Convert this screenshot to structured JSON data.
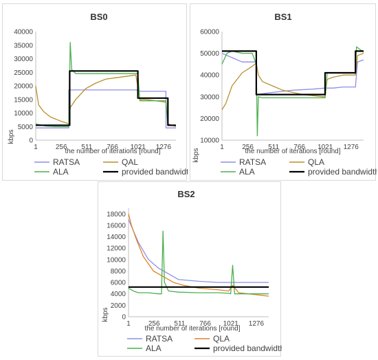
{
  "chart_data": [
    {
      "type": "line",
      "title": "BS0",
      "xlabel": "the number of iterations [round]",
      "ylabel": "kbps",
      "xlim": [
        1,
        1400
      ],
      "ylim": [
        0,
        40000
      ],
      "xticks": [
        "1",
        "256",
        "511",
        "766",
        "1021",
        "1276"
      ],
      "xtick_values": [
        1,
        256,
        511,
        766,
        1021,
        1276
      ],
      "yticks": [
        "0",
        "5000",
        "10000",
        "15000",
        "20000",
        "25000",
        "30000",
        "35000",
        "40000"
      ],
      "ytick_values": [
        0,
        5000,
        10000,
        15000,
        20000,
        25000,
        30000,
        35000,
        40000
      ],
      "legend": [
        "RATSA",
        "QAL",
        "ALA",
        "provided bandwidth"
      ],
      "series": [
        {
          "name": "RATSA",
          "color": "#8e8ee6",
          "x": [
            1,
            50,
            100,
            200,
            330,
            331,
            400,
            600,
            800,
            1000,
            1050,
            1200,
            1300,
            1301,
            1400
          ],
          "y": [
            4500,
            4500,
            4500,
            4500,
            4500,
            18500,
            18500,
            18500,
            18500,
            18500,
            18000,
            18000,
            18000,
            4500,
            4500
          ]
        },
        {
          "name": "QAL",
          "color": "#b8902a",
          "x": [
            1,
            30,
            80,
            150,
            250,
            330,
            345,
            400,
            500,
            600,
            700,
            800,
            900,
            1000,
            1040,
            1100,
            1200,
            1300,
            1320,
            1400
          ],
          "y": [
            20000,
            13000,
            10500,
            8500,
            7000,
            6000,
            12000,
            15000,
            19000,
            21000,
            22500,
            23000,
            23500,
            24000,
            15000,
            15000,
            14500,
            14000,
            6000,
            5000
          ]
        },
        {
          "name": "ALA",
          "color": "#4caf50",
          "x": [
            1,
            100,
            200,
            330,
            345,
            360,
            400,
            500,
            700,
            900,
            1020,
            1040,
            1100,
            1200,
            1300,
            1320,
            1400
          ],
          "y": [
            6000,
            5200,
            5000,
            5000,
            36000,
            26000,
            24500,
            24500,
            24500,
            24500,
            24500,
            14500,
            14500,
            14500,
            14500,
            5500,
            5500
          ]
        },
        {
          "name": "provided bandwidth",
          "color": "#000000",
          "x": [
            1,
            340,
            340,
            1020,
            1020,
            1320,
            1320,
            1400
          ],
          "y": [
            5500,
            5500,
            25500,
            25500,
            15500,
            15500,
            5500,
            5500
          ]
        }
      ]
    },
    {
      "type": "line",
      "title": "BS1",
      "xlabel": "the number of iterations [round]",
      "ylabel": "kbps",
      "xlim": [
        1,
        1400
      ],
      "ylim": [
        10000,
        60000
      ],
      "xticks": [
        "1",
        "256",
        "511",
        "766",
        "1021",
        "1276"
      ],
      "xtick_values": [
        1,
        256,
        511,
        766,
        1021,
        1276
      ],
      "yticks": [
        "10000",
        "20000",
        "30000",
        "40000",
        "50000",
        "60000"
      ],
      "ytick_values": [
        10000,
        20000,
        30000,
        40000,
        50000,
        60000
      ],
      "legend": [
        "RATSA",
        "QLA",
        "ALA",
        "provided bandwidth"
      ],
      "series": [
        {
          "name": "RATSA",
          "color": "#8e8ee6",
          "x": [
            1,
            100,
            200,
            340,
            341,
            500,
            700,
            900,
            1020,
            1100,
            1200,
            1320,
            1340,
            1400
          ],
          "y": [
            50000,
            48000,
            46000,
            46000,
            31000,
            32000,
            33000,
            33500,
            34000,
            34000,
            34500,
            34500,
            46000,
            47000
          ]
        },
        {
          "name": "QLA",
          "color": "#b8902a",
          "x": [
            1,
            40,
            100,
            200,
            300,
            340,
            360,
            400,
            500,
            600,
            700,
            800,
            900,
            1000,
            1020,
            1040,
            1100,
            1200,
            1320,
            1340,
            1400
          ],
          "y": [
            24000,
            27000,
            35000,
            41000,
            44000,
            45500,
            40000,
            37000,
            35000,
            33000,
            32000,
            31000,
            30500,
            30000,
            30000,
            38000,
            39000,
            40000,
            40000,
            49000,
            50000
          ]
        },
        {
          "name": "ALA",
          "color": "#4caf50",
          "x": [
            1,
            50,
            100,
            200,
            300,
            340,
            350,
            360,
            400,
            600,
            800,
            1000,
            1020,
            1040,
            1100,
            1200,
            1320,
            1330,
            1400
          ],
          "y": [
            45000,
            50000,
            51000,
            50000,
            50000,
            45000,
            12000,
            30000,
            29500,
            29500,
            29500,
            29500,
            29500,
            41000,
            41000,
            41000,
            41000,
            53000,
            50500
          ]
        },
        {
          "name": "provided bandwidth",
          "color": "#000000",
          "x": [
            1,
            340,
            340,
            1020,
            1020,
            1320,
            1320,
            1400
          ],
          "y": [
            51000,
            51000,
            31000,
            31000,
            41000,
            41000,
            51000,
            51000
          ]
        }
      ]
    },
    {
      "type": "line",
      "title": "BS2",
      "xlabel": "the number of iterations [round]",
      "ylabel": "kbps",
      "xlim": [
        1,
        1400
      ],
      "ylim": [
        0,
        19000
      ],
      "xticks": [
        "1",
        "256",
        "511",
        "766",
        "1021",
        "1276"
      ],
      "xtick_values": [
        1,
        256,
        511,
        766,
        1021,
        1276
      ],
      "yticks": [
        "0",
        "2000",
        "4000",
        "6000",
        "8000",
        "10000",
        "12000",
        "14000",
        "16000",
        "18000"
      ],
      "ytick_values": [
        0,
        2000,
        4000,
        6000,
        8000,
        10000,
        12000,
        14000,
        16000,
        18000
      ],
      "legend": [
        "RATSA",
        "QLA",
        "ALA",
        "provided bandwidth"
      ],
      "series": [
        {
          "name": "RATSA",
          "color": "#8e8ee6",
          "x": [
            1,
            100,
            200,
            300,
            400,
            500,
            700,
            900,
            1100,
            1300,
            1400
          ],
          "y": [
            17000,
            13000,
            10000,
            8500,
            7500,
            6500,
            6200,
            6000,
            6000,
            6000,
            6000
          ]
        },
        {
          "name": "QLA",
          "color": "#e0822a",
          "x": [
            1,
            30,
            80,
            150,
            250,
            350,
            450,
            550,
            700,
            900,
            1000,
            1040,
            1100,
            1200,
            1300,
            1400
          ],
          "y": [
            18000,
            16000,
            13500,
            10500,
            8000,
            7000,
            6000,
            5500,
            5000,
            4700,
            4500,
            5500,
            4200,
            4000,
            3800,
            3600
          ]
        },
        {
          "name": "ALA",
          "color": "#4caf50",
          "x": [
            1,
            50,
            100,
            200,
            300,
            330,
            345,
            360,
            400,
            500,
            700,
            900,
            1000,
            1020,
            1040,
            1060,
            1100,
            1200,
            1300,
            1400
          ],
          "y": [
            5000,
            4500,
            4200,
            4200,
            4000,
            4000,
            15000,
            6000,
            4500,
            4300,
            4200,
            4200,
            4100,
            4000,
            9000,
            4000,
            4000,
            4000,
            4000,
            4000
          ]
        },
        {
          "name": "provided bandwidth",
          "color": "#000000",
          "x": [
            1,
            1400
          ],
          "y": [
            5200,
            5200
          ]
        }
      ]
    }
  ]
}
